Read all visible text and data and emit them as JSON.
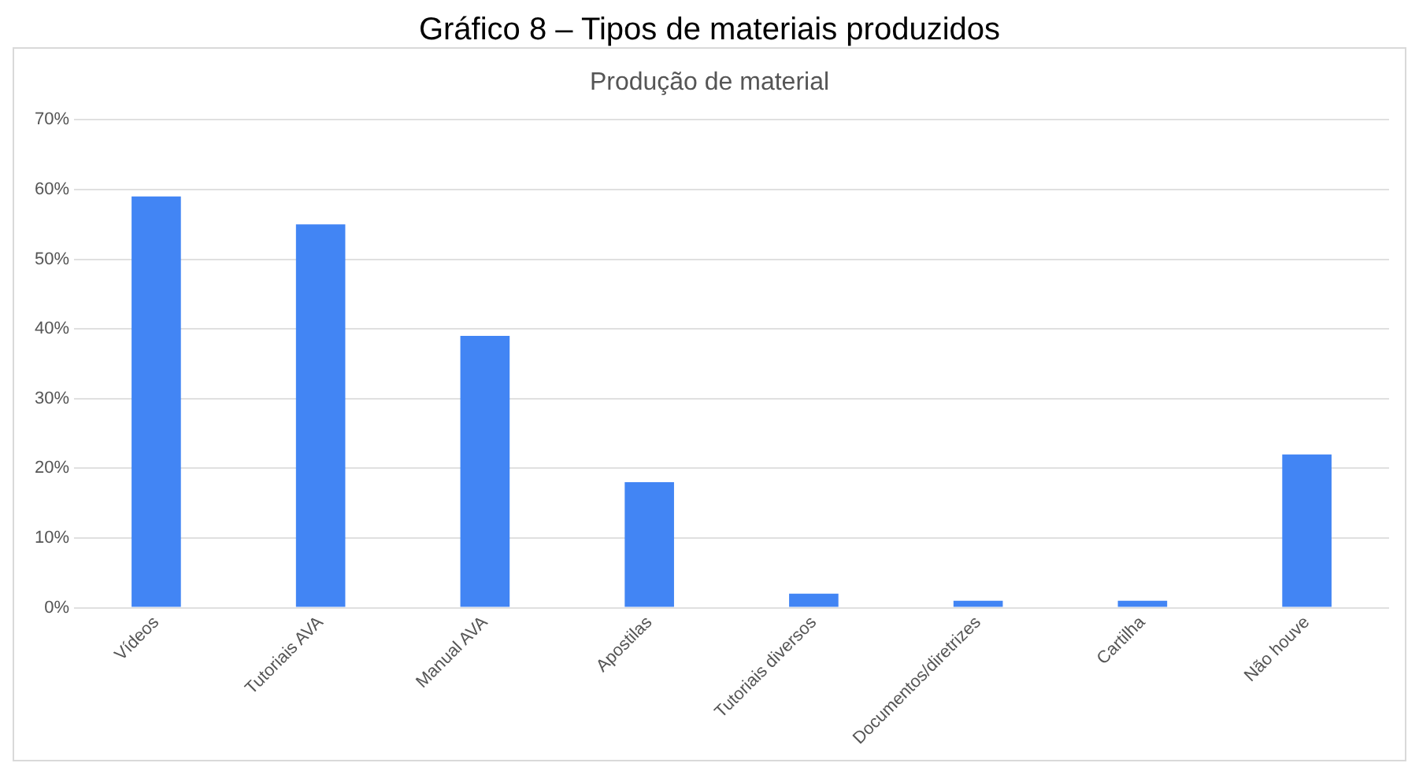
{
  "chart_data": {
    "type": "bar",
    "title": "Gráfico 8 – Tipos de materiais produzidos",
    "subtitle": "Produção de material",
    "categories": [
      "Vídeos",
      "Tutoriais AVA",
      "Manual AVA",
      "Apostilas",
      "Tutoriais diversos",
      "Documentos/diretrizes",
      "Cartilha",
      "Não houve"
    ],
    "values": [
      59,
      55,
      39,
      18,
      2,
      1,
      1,
      22
    ],
    "color": "#4285f4",
    "ylim": [
      0,
      70
    ],
    "yticks": [
      {
        "value": 0,
        "label": "0%"
      },
      {
        "value": 10,
        "label": "10%"
      },
      {
        "value": 20,
        "label": "20%"
      },
      {
        "value": 30,
        "label": "30%"
      },
      {
        "value": 40,
        "label": "40%"
      },
      {
        "value": 50,
        "label": "50%"
      },
      {
        "value": 60,
        "label": "60%"
      },
      {
        "value": 70,
        "label": "70%"
      }
    ],
    "grid": "y"
  }
}
